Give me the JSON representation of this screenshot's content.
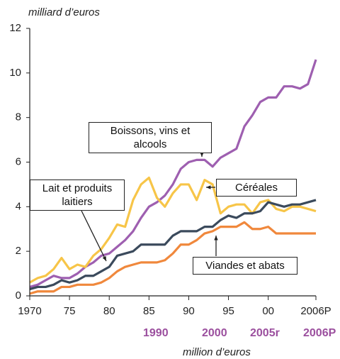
{
  "chart_data": {
    "type": "line",
    "y_label": "milliard d’euros",
    "x": [
      1970,
      1971,
      1972,
      1973,
      1974,
      1975,
      1976,
      1977,
      1978,
      1979,
      1980,
      1981,
      1982,
      1983,
      1984,
      1985,
      1986,
      1987,
      1988,
      1989,
      1990,
      1991,
      1992,
      1993,
      1994,
      1995,
      1996,
      1997,
      1998,
      1999,
      2000,
      2001,
      2002,
      2003,
      2004,
      2005,
      2006
    ],
    "xlim": [
      1970,
      2006
    ],
    "xticks": [
      1970,
      {
        "value": 1975,
        "label": "75"
      },
      {
        "value": 1980,
        "label": "80"
      },
      {
        "value": 1985,
        "label": "85"
      },
      {
        "value": 1990,
        "label": "90"
      },
      {
        "value": 1995,
        "label": "95"
      },
      {
        "value": 2000,
        "label": "00"
      },
      {
        "value": 2006,
        "label": "2006P"
      }
    ],
    "ylim": [
      0,
      12
    ],
    "yticks": [
      0,
      2,
      4,
      6,
      8,
      10,
      12
    ],
    "grid": false,
    "series": [
      {
        "name": "Boissons, vins et alcools",
        "color": "#9e5fb0",
        "values": [
          0.4,
          0.5,
          0.7,
          0.9,
          0.8,
          0.8,
          1.0,
          1.3,
          1.5,
          1.8,
          1.9,
          2.2,
          2.5,
          2.9,
          3.5,
          4.0,
          4.2,
          4.5,
          5.0,
          5.7,
          6.0,
          6.1,
          6.1,
          5.8,
          6.2,
          6.4,
          6.6,
          7.6,
          8.1,
          8.7,
          8.9,
          8.9,
          9.4,
          9.4,
          9.3,
          9.5,
          10.6
        ]
      },
      {
        "name": "Céréales",
        "color": "#f7c548",
        "values": [
          0.6,
          0.8,
          0.9,
          1.2,
          1.7,
          1.2,
          1.4,
          1.3,
          1.8,
          2.1,
          2.6,
          3.2,
          3.1,
          4.3,
          5.0,
          5.3,
          4.4,
          4.0,
          4.6,
          5.0,
          5.0,
          4.3,
          5.2,
          5.0,
          3.7,
          4.0,
          4.1,
          4.1,
          3.7,
          4.2,
          4.3,
          3.9,
          3.8,
          4.0,
          4.0,
          3.9,
          3.8
        ]
      },
      {
        "name": "Lait et produits laitiers",
        "color": "#3b4a5c",
        "values": [
          0.3,
          0.4,
          0.4,
          0.5,
          0.7,
          0.6,
          0.7,
          0.9,
          0.9,
          1.1,
          1.3,
          1.8,
          1.9,
          2.0,
          2.3,
          2.3,
          2.3,
          2.3,
          2.7,
          2.9,
          2.9,
          2.9,
          3.1,
          3.1,
          3.4,
          3.6,
          3.5,
          3.7,
          3.7,
          3.8,
          4.2,
          4.1,
          4.0,
          4.1,
          4.1,
          4.2,
          4.3
        ]
      },
      {
        "name": "Viandes et abats",
        "color": "#f0883c",
        "values": [
          0.1,
          0.2,
          0.2,
          0.2,
          0.4,
          0.4,
          0.5,
          0.5,
          0.5,
          0.6,
          0.8,
          1.1,
          1.3,
          1.4,
          1.5,
          1.5,
          1.5,
          1.6,
          1.9,
          2.3,
          2.3,
          2.5,
          2.8,
          2.9,
          3.1,
          3.1,
          3.1,
          3.3,
          3.0,
          3.0,
          3.1,
          2.8,
          2.8,
          2.8,
          2.8,
          2.8,
          2.8
        ]
      }
    ],
    "footer_labels": [
      "1990",
      "2000",
      "2005r",
      "2006P"
    ],
    "footer_unit": "million d’euros"
  }
}
